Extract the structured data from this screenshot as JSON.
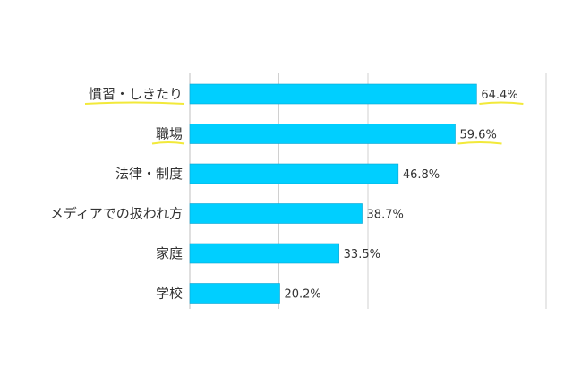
{
  "chart_data": {
    "type": "bar",
    "orientation": "horizontal",
    "title": "",
    "xlabel": "",
    "ylabel": "",
    "categories": [
      "慣習・しきたり",
      "職場",
      "法律・制度",
      "メディアでの扱われ方",
      "家庭",
      "学校"
    ],
    "values": [
      64.4,
      59.6,
      46.8,
      38.7,
      33.5,
      20.2
    ],
    "value_labels": [
      "64.4%",
      "59.6%",
      "46.8%",
      "38.7%",
      "33.5%",
      "20.2%"
    ],
    "highlighted": [
      true,
      true,
      false,
      false,
      false,
      false
    ],
    "xlim": [
      0,
      80
    ],
    "grid": true,
    "legend": "none",
    "bar_color": "#00cfff",
    "highlight_color": "#f2e93a"
  }
}
